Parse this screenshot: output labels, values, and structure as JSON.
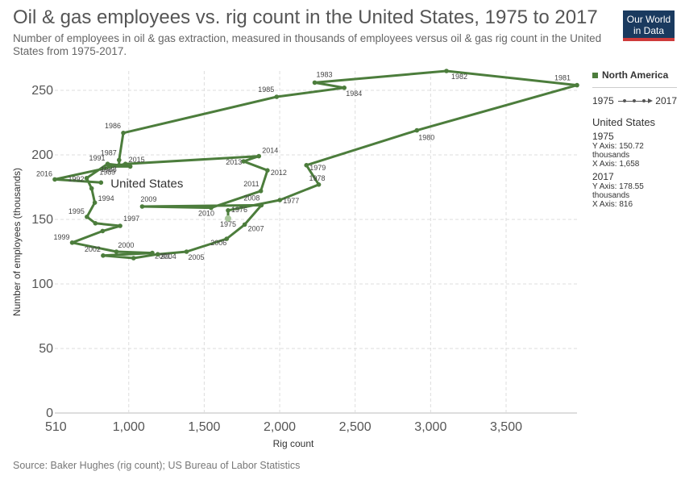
{
  "header": {
    "title": "Oil & gas employees vs. rig count in the United States, 1975 to 2017",
    "subtitle": "Number of employees in oil & gas extraction, measured in thousands of employees versus oil & gas rig count in the United States from 1975-2017.",
    "logo_line1": "Our World",
    "logo_line2": "in Data"
  },
  "footer": {
    "source": "Source: Baker Hughes (rig count); US Bureau of Labor Statistics"
  },
  "legend": {
    "region_label": "North America",
    "timeline_start": "1975",
    "timeline_end": "2017",
    "entity": "United States",
    "start": {
      "year": "1975",
      "y_line": "Y Axis: 150.72",
      "unit_line": "thousands",
      "x_line": "X Axis: 1,658"
    },
    "end": {
      "year": "2017",
      "y_line": "Y Axis: 178.55",
      "unit_line": "thousands",
      "x_line": "X Axis: 816"
    }
  },
  "colors": {
    "series": "#4c7d3c",
    "grid": "#dddddd",
    "axis_text": "#555555"
  },
  "chart_data": {
    "type": "line",
    "connected_scatter": true,
    "title": "Oil & gas employees vs. rig count in the United States, 1975 to 2017",
    "xlabel": "Rig count",
    "ylabel": "Number of employees (thousands)",
    "xlim": [
      510,
      3970
    ],
    "ylim": [
      0,
      265
    ],
    "x_ticks": [
      {
        "value": 510,
        "label": "510"
      },
      {
        "value": 1000,
        "label": "1,000"
      },
      {
        "value": 1500,
        "label": "1,500"
      },
      {
        "value": 2000,
        "label": "2,000"
      },
      {
        "value": 2500,
        "label": "2,500"
      },
      {
        "value": 3000,
        "label": "3,000"
      },
      {
        "value": 3500,
        "label": "3,500"
      }
    ],
    "y_ticks": [
      0,
      50,
      100,
      150,
      200,
      250
    ],
    "grid": true,
    "legend_position": "right",
    "series": [
      {
        "name": "United States",
        "label": "United States",
        "points": [
          {
            "year": 1975,
            "x": 1658,
            "y": 150.72
          },
          {
            "year": 1976,
            "x": 1658,
            "y": 157
          },
          {
            "year": 1977,
            "x": 2001,
            "y": 165
          },
          {
            "year": 1978,
            "x": 2259,
            "y": 177
          },
          {
            "year": 1979,
            "x": 2177,
            "y": 192
          },
          {
            "year": 1980,
            "x": 2909,
            "y": 219
          },
          {
            "year": 1981,
            "x": 3970,
            "y": 254
          },
          {
            "year": 1982,
            "x": 3105,
            "y": 265
          },
          {
            "year": 1983,
            "x": 2232,
            "y": 256
          },
          {
            "year": 1984,
            "x": 2428,
            "y": 252
          },
          {
            "year": 1985,
            "x": 1980,
            "y": 245
          },
          {
            "year": 1986,
            "x": 964,
            "y": 217
          },
          {
            "year": 1987,
            "x": 936,
            "y": 196
          },
          {
            "year": 1988,
            "x": 936,
            "y": 192
          },
          {
            "year": 1989,
            "x": 869,
            "y": 191
          },
          {
            "year": 1990,
            "x": 1010,
            "y": 191
          },
          {
            "year": 1991,
            "x": 860,
            "y": 193
          },
          {
            "year": 1992,
            "x": 721,
            "y": 182
          },
          {
            "year": 1993,
            "x": 754,
            "y": 174
          },
          {
            "year": 1994,
            "x": 775,
            "y": 163
          },
          {
            "year": 1995,
            "x": 723,
            "y": 152
          },
          {
            "year": 1996,
            "x": 779,
            "y": 147
          },
          {
            "year": 1997,
            "x": 943,
            "y": 145
          },
          {
            "year": 1998,
            "x": 827,
            "y": 141
          },
          {
            "year": 1999,
            "x": 625,
            "y": 132
          },
          {
            "year": 2000,
            "x": 918,
            "y": 125
          },
          {
            "year": 2001,
            "x": 1156,
            "y": 124
          },
          {
            "year": 2002,
            "x": 830,
            "y": 122
          },
          {
            "year": 2003,
            "x": 1032,
            "y": 120
          },
          {
            "year": 2004,
            "x": 1192,
            "y": 123
          },
          {
            "year": 2005,
            "x": 1383,
            "y": 125
          },
          {
            "year": 2006,
            "x": 1649,
            "y": 135
          },
          {
            "year": 2007,
            "x": 1768,
            "y": 146
          },
          {
            "year": 2008,
            "x": 1879,
            "y": 161
          },
          {
            "year": 2009,
            "x": 1089,
            "y": 160
          },
          {
            "year": 2010,
            "x": 1546,
            "y": 159
          },
          {
            "year": 2011,
            "x": 1875,
            "y": 172
          },
          {
            "year": 2012,
            "x": 1919,
            "y": 188
          },
          {
            "year": 2013,
            "x": 1761,
            "y": 195
          },
          {
            "year": 2014,
            "x": 1862,
            "y": 199
          },
          {
            "year": 2015,
            "x": 978,
            "y": 193
          },
          {
            "year": 2016,
            "x": 510,
            "y": 181
          },
          {
            "year": 2017,
            "x": 816,
            "y": 178.55
          }
        ]
      }
    ]
  }
}
